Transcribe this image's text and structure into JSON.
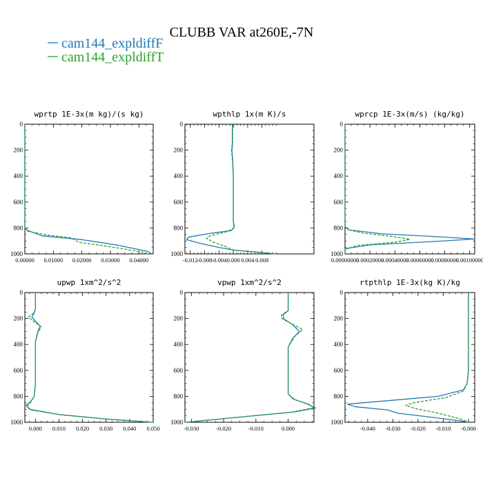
{
  "title": "CLUBB VAR at260E,-7N",
  "legend": [
    {
      "label": "cam144_expldiffF",
      "color": "#1f77b4",
      "dash": "solid"
    },
    {
      "label": "cam144_expldiffT",
      "color": "#2ca02c",
      "dash": "dashed"
    }
  ],
  "chart_data": [
    {
      "type": "line",
      "title": "wprtp  1E-3x(m kg)/(s kg)",
      "xlim": [
        0,
        0.045
      ],
      "ylim": [
        1000,
        0
      ],
      "xticks": [
        "0.00000",
        "0.01000",
        "0.02000",
        "0.03000",
        "0.04000"
      ],
      "xtick_values": [
        0,
        0.01,
        0.02,
        0.03,
        0.04
      ],
      "yticks": [
        "0",
        "200",
        "400",
        "600",
        "800",
        "1000"
      ],
      "ytick_values": [
        0,
        200,
        400,
        600,
        800,
        1000
      ],
      "series": [
        {
          "name": "cam144_expldiffF",
          "points": [
            [
              0,
              0
            ],
            [
              0,
              600
            ],
            [
              0,
              800
            ],
            [
              0.001,
              820
            ],
            [
              0.006,
              860
            ],
            [
              0.02,
              890
            ],
            [
              0.032,
              930
            ],
            [
              0.043,
              980
            ],
            [
              0.0445,
              1000
            ]
          ]
        },
        {
          "name": "cam144_expldiffT",
          "points": [
            [
              0,
              0
            ],
            [
              0,
              600
            ],
            [
              0,
              800
            ],
            [
              0.001,
              825
            ],
            [
              0.008,
              855
            ],
            [
              0.016,
              875
            ],
            [
              0.019,
              910
            ],
            [
              0.03,
              945
            ],
            [
              0.041,
              985
            ],
            [
              0.043,
              1000
            ]
          ]
        }
      ]
    },
    {
      "type": "line",
      "title": "wpthlp  1x(m K)/s",
      "xlim": [
        -0.0135,
        0.0225
      ],
      "ylim": [
        1000,
        0
      ],
      "xticks": [
        "-0.012",
        "-0.008",
        "-0.004",
        "0.000",
        "0.004",
        "0.008"
      ],
      "xtick_values": [
        -0.012,
        -0.008,
        -0.004,
        0,
        0.004,
        0.008
      ],
      "yticks": [
        "0",
        "200",
        "400",
        "600",
        "800",
        "1000"
      ],
      "ytick_values": [
        0,
        200,
        400,
        600,
        800,
        1000
      ],
      "series": [
        {
          "name": "cam144_expldiffF",
          "points": [
            [
              -0.0002,
              0
            ],
            [
              -0.0002,
              150
            ],
            [
              -0.0004,
              200
            ],
            [
              -0.0002,
              260
            ],
            [
              0,
              400
            ],
            [
              0,
              600
            ],
            [
              0,
              750
            ],
            [
              0.0003,
              790
            ],
            [
              -0.0005,
              820
            ],
            [
              -0.006,
              840
            ],
            [
              -0.0125,
              870
            ],
            [
              -0.013,
              890
            ],
            [
              -0.009,
              920
            ],
            [
              -0.004,
              950
            ],
            [
              0,
              970
            ],
            [
              0.012,
              1000
            ]
          ]
        },
        {
          "name": "cam144_expldiffT",
          "points": [
            [
              -0.0003,
              0
            ],
            [
              -0.0003,
              150
            ],
            [
              -0.0005,
              200
            ],
            [
              -0.0003,
              260
            ],
            [
              0,
              400
            ],
            [
              0,
              600
            ],
            [
              0,
              750
            ],
            [
              0.0002,
              800
            ],
            [
              -0.002,
              830
            ],
            [
              -0.0065,
              860
            ],
            [
              -0.0075,
              880
            ],
            [
              -0.0055,
              910
            ],
            [
              -0.002,
              945
            ],
            [
              0,
              970
            ],
            [
              0.012,
              1000
            ]
          ]
        }
      ]
    },
    {
      "type": "line",
      "title": "wprcp  1E-3x(m/s) (kg/kg)",
      "xlim": [
        0,
        0.00104
      ],
      "ylim": [
        1000,
        0
      ],
      "xticks": [
        "0.00000000",
        "0.00020000",
        "0.00040000",
        "0.00060000",
        "0.00080000",
        "0.00100000"
      ],
      "xtick_values": [
        0,
        0.0002,
        0.0004,
        0.0006,
        0.0008,
        0.001
      ],
      "yticks": [
        "0",
        "200",
        "400",
        "600",
        "800",
        "1000"
      ],
      "ytick_values": [
        0,
        200,
        400,
        600,
        800,
        1000
      ],
      "series": [
        {
          "name": "cam144_expldiffF",
          "points": [
            [
              0,
              0
            ],
            [
              0,
              790
            ],
            [
              3e-05,
              815
            ],
            [
              0.0003,
              845
            ],
            [
              0.0007,
              865
            ],
            [
              0.00104,
              885
            ],
            [
              0.0007,
              905
            ],
            [
              0.0002,
              930
            ],
            [
              0,
              960
            ],
            [
              0,
              1000
            ]
          ]
        },
        {
          "name": "cam144_expldiffT",
          "points": [
            [
              0,
              0
            ],
            [
              0,
              790
            ],
            [
              3e-05,
              815
            ],
            [
              0.00015,
              840
            ],
            [
              0.00038,
              865
            ],
            [
              0.00052,
              888
            ],
            [
              0.0004,
              910
            ],
            [
              0.0001,
              935
            ],
            [
              0,
              965
            ],
            [
              0,
              1000
            ]
          ]
        }
      ]
    },
    {
      "type": "line",
      "title": "upwp  1xm^2/s^2",
      "xlim": [
        -0.0045,
        0.05
      ],
      "ylim": [
        1000,
        0
      ],
      "xticks": [
        "0.000",
        "0.010",
        "0.020",
        "0.030",
        "0.040",
        "0.050"
      ],
      "xtick_values": [
        0,
        0.01,
        0.02,
        0.03,
        0.04,
        0.05
      ],
      "yticks": [
        "0",
        "200",
        "400",
        "600",
        "800",
        "1000"
      ],
      "ytick_values": [
        0,
        200,
        400,
        600,
        800,
        1000
      ],
      "series": [
        {
          "name": "cam144_expldiffF",
          "points": [
            [
              0,
              0
            ],
            [
              0,
              130
            ],
            [
              -0.0005,
              155
            ],
            [
              -0.0015,
              190
            ],
            [
              0.0005,
              230
            ],
            [
              0.002,
              260
            ],
            [
              0.001,
              300
            ],
            [
              0,
              380
            ],
            [
              0,
              500
            ],
            [
              0,
              700
            ],
            [
              -0.0005,
              800
            ],
            [
              -0.002,
              840
            ],
            [
              -0.004,
              870
            ],
            [
              -0.0025,
              900
            ],
            [
              0.01,
              940
            ],
            [
              0.03,
              975
            ],
            [
              0.05,
              1000
            ]
          ]
        },
        {
          "name": "cam144_expldiffT",
          "points": [
            [
              0,
              0
            ],
            [
              0,
              130
            ],
            [
              -0.001,
              160
            ],
            [
              -0.003,
              190
            ],
            [
              -0.0005,
              225
            ],
            [
              0.0025,
              265
            ],
            [
              0.001,
              310
            ],
            [
              0,
              380
            ],
            [
              0,
              500
            ],
            [
              0,
              700
            ],
            [
              -0.0005,
              800
            ],
            [
              -0.002,
              845
            ],
            [
              -0.0035,
              875
            ],
            [
              -0.002,
              905
            ],
            [
              0.012,
              945
            ],
            [
              0.032,
              978
            ],
            [
              0.049,
              1000
            ]
          ]
        }
      ]
    },
    {
      "type": "line",
      "title": "vpwp  1xm^2/s^2",
      "xlim": [
        -0.032,
        0.008
      ],
      "ylim": [
        1000,
        0
      ],
      "xticks": [
        "-0.030",
        "-0.020",
        "-0.010",
        "0.000"
      ],
      "xtick_values": [
        -0.03,
        -0.02,
        -0.01,
        0
      ],
      "yticks": [
        "0",
        "200",
        "400",
        "600",
        "800",
        "1000"
      ],
      "ytick_values": [
        0,
        200,
        400,
        600,
        800,
        1000
      ],
      "series": [
        {
          "name": "cam144_expldiffF",
          "points": [
            [
              0,
              0
            ],
            [
              0,
              140
            ],
            [
              -0.0015,
              170
            ],
            [
              -0.0015,
              200
            ],
            [
              0.0015,
              250
            ],
            [
              0.0035,
              300
            ],
            [
              0.0015,
              350
            ],
            [
              0,
              420
            ],
            [
              0,
              600
            ],
            [
              0,
              780
            ],
            [
              0.0015,
              820
            ],
            [
              0.006,
              860
            ],
            [
              0.0085,
              890
            ],
            [
              0.002,
              920
            ],
            [
              -0.015,
              960
            ],
            [
              -0.032,
              1000
            ]
          ]
        },
        {
          "name": "cam144_expldiffT",
          "points": [
            [
              0,
              0
            ],
            [
              0,
              140
            ],
            [
              -0.002,
              170
            ],
            [
              -0.002,
              200
            ],
            [
              0.001,
              240
            ],
            [
              0.0045,
              285
            ],
            [
              0.002,
              340
            ],
            [
              0,
              420
            ],
            [
              0,
              600
            ],
            [
              0,
              780
            ],
            [
              0.002,
              825
            ],
            [
              0.0065,
              862
            ],
            [
              0.008,
              888
            ],
            [
              0.001,
              922
            ],
            [
              -0.016,
              962
            ],
            [
              -0.031,
              1000
            ]
          ]
        }
      ]
    },
    {
      "type": "line",
      "title": "rtpthlp  1E-3x(kg K)/kg",
      "xlim": [
        -0.049,
        0.0025
      ],
      "ylim": [
        1000,
        0
      ],
      "xticks": [
        "-0.040",
        "-0.030",
        "-0.020",
        "-0.010",
        "-0.000"
      ],
      "xtick_values": [
        -0.04,
        -0.03,
        -0.02,
        -0.01,
        0
      ],
      "yticks": [
        "0",
        "200",
        "400",
        "600",
        "800",
        "1000"
      ],
      "ytick_values": [
        0,
        200,
        400,
        600,
        800,
        1000
      ],
      "series": [
        {
          "name": "cam144_expldiffF",
          "points": [
            [
              0,
              0
            ],
            [
              0,
              300
            ],
            [
              0,
              600
            ],
            [
              -0.0005,
              700
            ],
            [
              -0.002,
              750
            ],
            [
              -0.012,
              800
            ],
            [
              -0.03,
              830
            ],
            [
              -0.048,
              860
            ],
            [
              -0.045,
              880
            ],
            [
              -0.032,
              905
            ],
            [
              -0.028,
              930
            ],
            [
              -0.015,
              960
            ],
            [
              -0.003,
              990
            ],
            [
              0,
              1000
            ]
          ]
        },
        {
          "name": "cam144_expldiffT",
          "points": [
            [
              0,
              0
            ],
            [
              0,
              300
            ],
            [
              0,
              600
            ],
            [
              -0.0005,
              700
            ],
            [
              -0.002,
              760
            ],
            [
              -0.009,
              810
            ],
            [
              -0.022,
              850
            ],
            [
              -0.025,
              870
            ],
            [
              -0.021,
              895
            ],
            [
              -0.013,
              925
            ],
            [
              -0.005,
              965
            ],
            [
              -0.001,
              990
            ],
            [
              0,
              1000
            ]
          ]
        }
      ]
    }
  ]
}
